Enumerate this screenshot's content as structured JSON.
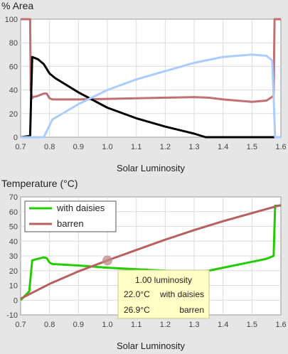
{
  "chart_data": [
    {
      "type": "line",
      "title": "% Area",
      "xlabel": "Solar Luminosity",
      "ylabel": "% Area",
      "xlim": [
        0.7,
        1.6
      ],
      "ylim": [
        0,
        100
      ],
      "xticks": [
        "0.7",
        "0.8",
        "0.9",
        "1.0",
        "1.1",
        "1.2",
        "1.3",
        "1.4",
        "1.5",
        "1.6"
      ],
      "yticks": [
        "0",
        "20",
        "40",
        "60",
        "80",
        "100"
      ],
      "grid": true,
      "series": [
        {
          "color": "#c07070",
          "x": [
            0.7,
            0.733,
            0.735,
            0.74,
            0.742,
            0.76,
            0.78,
            0.79,
            0.8,
            0.81,
            0.9,
            1.0,
            1.1,
            1.2,
            1.3,
            1.35,
            1.4,
            1.5,
            1.55,
            1.575,
            1.578,
            1.585,
            1.6
          ],
          "y": [
            100,
            100,
            40,
            33,
            34,
            35,
            37,
            37,
            33,
            32,
            32,
            32.5,
            33,
            33.5,
            34,
            33.5,
            32,
            30,
            31,
            35,
            100,
            100,
            100
          ]
        },
        {
          "color": "#000000",
          "x": [
            0.7,
            0.733,
            0.737,
            0.74,
            0.76,
            0.78,
            0.8,
            0.82,
            0.9,
            1.0,
            1.1,
            1.2,
            1.3,
            1.34,
            1.6
          ],
          "y": [
            0,
            1,
            40,
            68,
            66,
            62,
            54,
            50,
            38,
            25,
            16,
            9,
            3,
            0,
            0
          ]
        },
        {
          "color": "#aaccff",
          "x": [
            0.7,
            0.78,
            0.79,
            0.8,
            0.81,
            0.9,
            1.0,
            1.1,
            1.2,
            1.3,
            1.4,
            1.5,
            1.55,
            1.57,
            1.58,
            1.6
          ],
          "y": [
            0,
            0,
            5,
            10,
            15,
            28,
            40,
            49,
            56,
            63,
            68,
            70,
            69,
            65,
            0,
            0
          ]
        }
      ]
    },
    {
      "type": "line",
      "title": "Temperature (°C)",
      "xlabel": "Solar Luminosity",
      "ylabel": "Temperature (°C)",
      "xlim": [
        0.7,
        1.6
      ],
      "ylim": [
        -10,
        70
      ],
      "xticks": [
        "0.7",
        "0.8",
        "0.9",
        "1.0",
        "1.1",
        "1.2",
        "1.3",
        "1.4",
        "1.5",
        "1.6"
      ],
      "yticks": [
        "-10",
        "0",
        "10",
        "20",
        "30",
        "40",
        "50",
        "60",
        "70"
      ],
      "grid": true,
      "legend": "top-left",
      "series": [
        {
          "name": "with daisies",
          "color": "#22cc00",
          "x": [
            0.7,
            0.73,
            0.74,
            0.76,
            0.78,
            0.79,
            0.8,
            0.81,
            0.9,
            1.0,
            1.1,
            1.2,
            1.3,
            1.35,
            1.4,
            1.5,
            1.55,
            1.575,
            1.58,
            1.6
          ],
          "y": [
            0,
            6,
            27,
            28,
            29,
            28.5,
            25.5,
            24.5,
            23.5,
            22.0,
            21,
            20,
            19.5,
            20,
            22,
            26,
            28,
            30,
            64,
            64
          ]
        },
        {
          "name": "barren",
          "color": "#b86060",
          "x": [
            0.7,
            0.8,
            0.9,
            1.0,
            1.1,
            1.2,
            1.3,
            1.4,
            1.5,
            1.6
          ],
          "y": [
            1,
            11,
            19.5,
            26.9,
            34,
            41,
            47.5,
            53.5,
            59,
            64.5
          ]
        }
      ],
      "marker": {
        "x": 1.0,
        "y": 26.9
      },
      "tooltip": {
        "header": "1.00 luminosity",
        "rows": [
          {
            "value": "22.0°C",
            "label": "with daisies"
          },
          {
            "value": "26.9°C",
            "label": "barren"
          }
        ]
      }
    }
  ]
}
